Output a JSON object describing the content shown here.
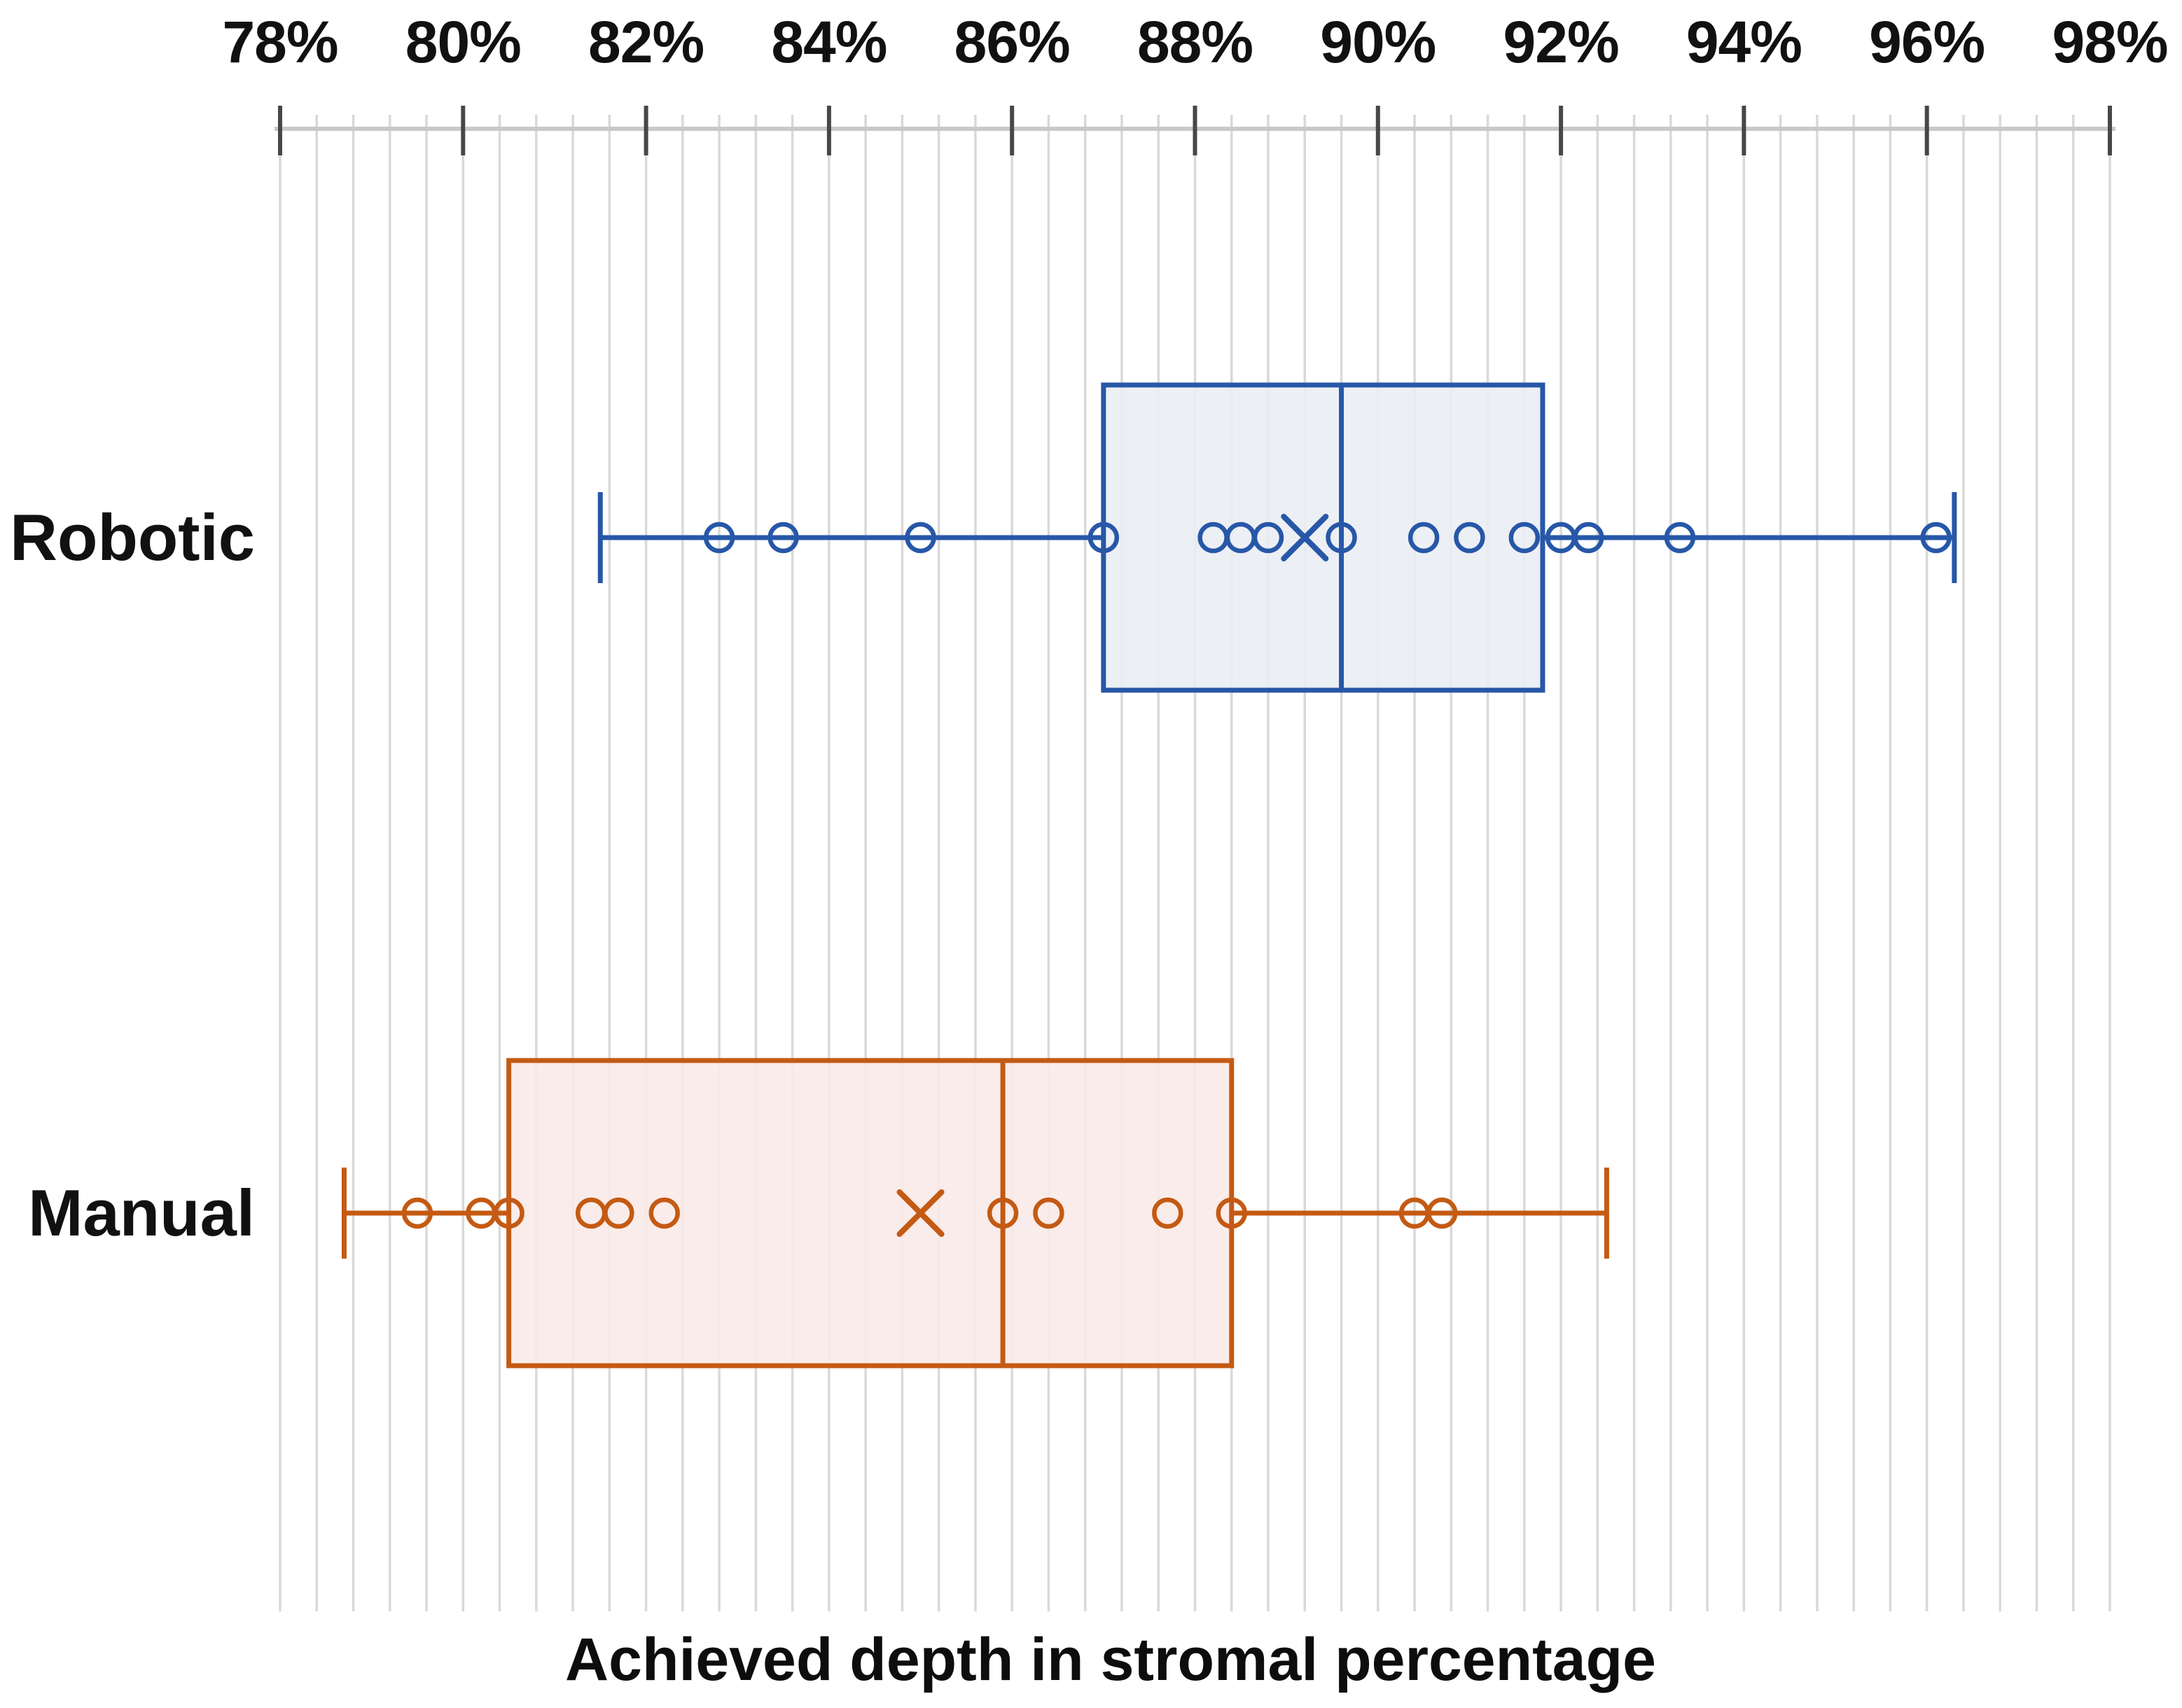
{
  "chart_data": {
    "type": "boxplot",
    "orientation": "horizontal",
    "title": "",
    "xlabel": "Achieved depth in stromal percentage",
    "ylabel": "",
    "grid": true,
    "legend": null,
    "x_axis": {
      "min": 78,
      "max": 98,
      "major_tick_step": 2,
      "minor_gridline_step": 0.4,
      "unit": "%",
      "tick_labels": [
        "78%",
        "80%",
        "82%",
        "84%",
        "86%",
        "88%",
        "90%",
        "92%",
        "94%",
        "96%",
        "98%"
      ]
    },
    "categories": [
      "Robotic",
      "Manual"
    ],
    "series": [
      {
        "name": "Robotic",
        "color": "#2757A8",
        "fill": "#E9EDF3",
        "box": {
          "whisker_min": 81.5,
          "q1": 87.0,
          "median": 89.6,
          "q3": 91.8,
          "whisker_max": 96.3,
          "mean": 89.2
        },
        "points": [
          82.8,
          83.5,
          85.0,
          87.0,
          88.2,
          88.5,
          88.8,
          89.6,
          90.5,
          91.0,
          91.6,
          92.0,
          92.3,
          93.3,
          96.1
        ]
      },
      {
        "name": "Manual",
        "color": "#C45A13",
        "fill": "#F9E9E7",
        "box": {
          "whisker_min": 78.7,
          "q1": 80.5,
          "median": 85.9,
          "q3": 88.4,
          "whisker_max": 92.5,
          "mean": 85.0
        },
        "points": [
          79.5,
          80.2,
          80.5,
          81.4,
          81.7,
          82.2,
          85.9,
          86.4,
          87.7,
          88.4,
          90.4,
          90.7
        ]
      }
    ]
  },
  "colors": {
    "background": "#FFFFFF",
    "gridline": "#D9D9D9",
    "axis_line": "#C9C9C9",
    "major_tick": "#474747",
    "text": "#111111"
  }
}
